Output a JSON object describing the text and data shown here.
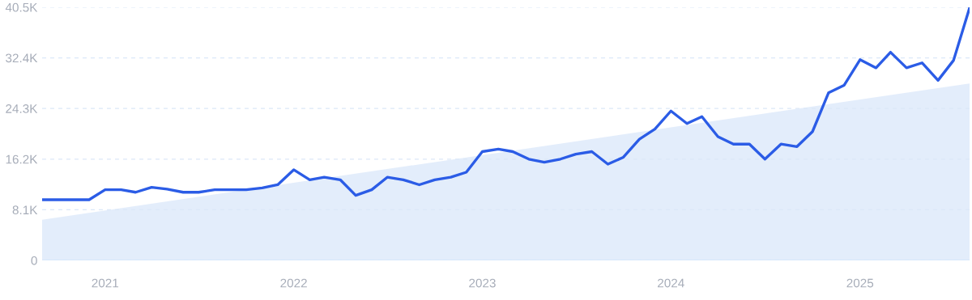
{
  "chart_data": {
    "type": "line",
    "x": [
      "2020-09",
      "2020-10",
      "2020-11",
      "2020-12",
      "2021-01",
      "2021-02",
      "2021-03",
      "2021-04",
      "2021-05",
      "2021-06",
      "2021-07",
      "2021-08",
      "2021-09",
      "2021-10",
      "2021-11",
      "2021-12",
      "2022-01",
      "2022-02",
      "2022-03",
      "2022-04",
      "2022-05",
      "2022-06",
      "2022-07",
      "2022-08",
      "2022-09",
      "2022-10",
      "2022-11",
      "2022-12",
      "2023-01",
      "2023-02",
      "2023-03",
      "2023-04",
      "2023-05",
      "2023-06",
      "2023-07",
      "2023-08",
      "2023-09",
      "2023-10",
      "2023-11",
      "2023-12",
      "2024-01",
      "2024-02",
      "2024-03",
      "2024-04",
      "2024-05",
      "2024-06",
      "2024-07",
      "2024-08",
      "2024-09",
      "2024-10",
      "2024-11",
      "2024-12",
      "2025-01",
      "2025-02",
      "2025-03",
      "2025-04",
      "2025-05",
      "2025-06",
      "2025-07",
      "2025-08"
    ],
    "series": [
      {
        "type": "area",
        "color": "#dce9fa",
        "x": [
          "2020-09",
          "2025-08"
        ],
        "values": [
          6500,
          28300
        ]
      },
      {
        "color": "#2b5ce6",
        "values": [
          9700,
          9700,
          9700,
          9700,
          11300,
          11300,
          10900,
          11700,
          11400,
          10900,
          10900,
          11300,
          11300,
          11300,
          11600,
          12100,
          14500,
          12900,
          13300,
          12900,
          10400,
          11300,
          13300,
          12900,
          12100,
          12900,
          13300,
          14100,
          17400,
          17800,
          17400,
          16200,
          15700,
          16200,
          17000,
          17400,
          15400,
          16500,
          19400,
          21000,
          23900,
          21900,
          23000,
          19800,
          18600,
          18600,
          16200,
          18600,
          18200,
          20600,
          26800,
          28000,
          32100,
          30800,
          33300,
          30800,
          31600,
          28800,
          32000,
          40400
        ]
      }
    ],
    "xlim": [
      "2020-09",
      "2025-08"
    ],
    "xticks": [
      {
        "value": "2021-01",
        "label": "2021"
      },
      {
        "value": "2022-01",
        "label": "2022"
      },
      {
        "value": "2023-01",
        "label": "2023"
      },
      {
        "value": "2024-01",
        "label": "2024"
      },
      {
        "value": "2025-01",
        "label": "2025"
      }
    ],
    "ylim": [
      0,
      40500
    ],
    "yticks": [
      0,
      {
        "value": 8100,
        "label": "8.1K"
      },
      {
        "value": 16200,
        "label": "16.2K"
      },
      {
        "value": 24300,
        "label": "24.3K"
      },
      {
        "value": 32400,
        "label": "32.4K"
      },
      {
        "value": 40500,
        "label": "40.5K"
      }
    ],
    "grid": "y",
    "legend": false,
    "marker": "none",
    "line_style": "solid"
  }
}
